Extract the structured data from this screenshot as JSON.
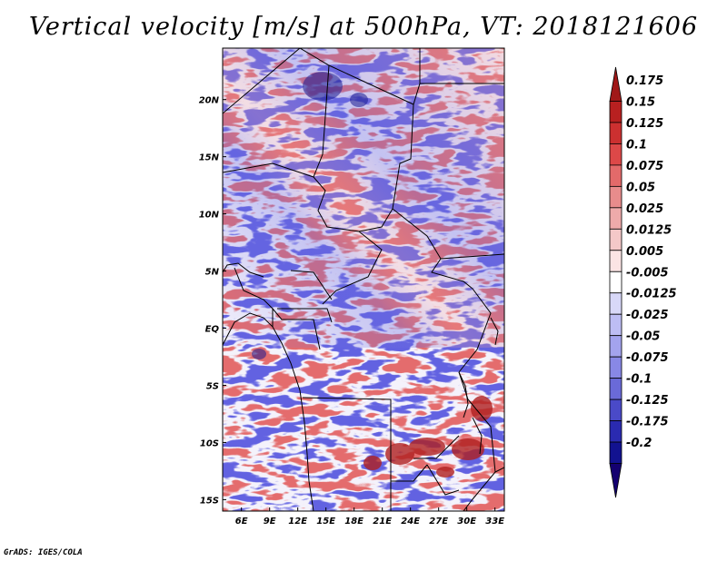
{
  "title": "Vertical velocity [m/s] at 500hPa, VT: 2018121606",
  "credit": "GrADS: IGES/COLA",
  "lat_labels": [
    "20N",
    "15N",
    "10N",
    "5N",
    "EQ",
    "5S",
    "10S",
    "15S"
  ],
  "lat_values": [
    20,
    15,
    10,
    5,
    0,
    -5,
    -10,
    -15
  ],
  "lon_labels": [
    "6E",
    "9E",
    "12E",
    "15E",
    "18E",
    "21E",
    "24E",
    "27E",
    "30E",
    "33E"
  ],
  "lon_values": [
    6,
    9,
    12,
    15,
    18,
    21,
    24,
    27,
    30,
    33
  ],
  "lon_range": [
    4,
    34
  ],
  "lat_range": [
    -16,
    24.5
  ],
  "colorbar": {
    "levels": [
      "0.175",
      "0.15",
      "0.125",
      "0.1",
      "0.075",
      "0.05",
      "0.025",
      "0.0125",
      "0.005",
      "-0.005",
      "-0.0125",
      "-0.025",
      "-0.05",
      "-0.075",
      "-0.1",
      "-0.125",
      "-0.175",
      "-0.2"
    ],
    "colors": [
      "#a01818",
      "#b82020",
      "#cc3030",
      "#dd4848",
      "#e36a6a",
      "#e88c8c",
      "#eeaaaa",
      "#f4c8c8",
      "#fbe4e4",
      "#ffffff",
      "#d8d8f8",
      "#bdbdf4",
      "#a3a3ee",
      "#8888e6",
      "#6a6ad8",
      "#4a4ac8",
      "#2a2ab0",
      "#121290",
      "#140070"
    ]
  }
}
